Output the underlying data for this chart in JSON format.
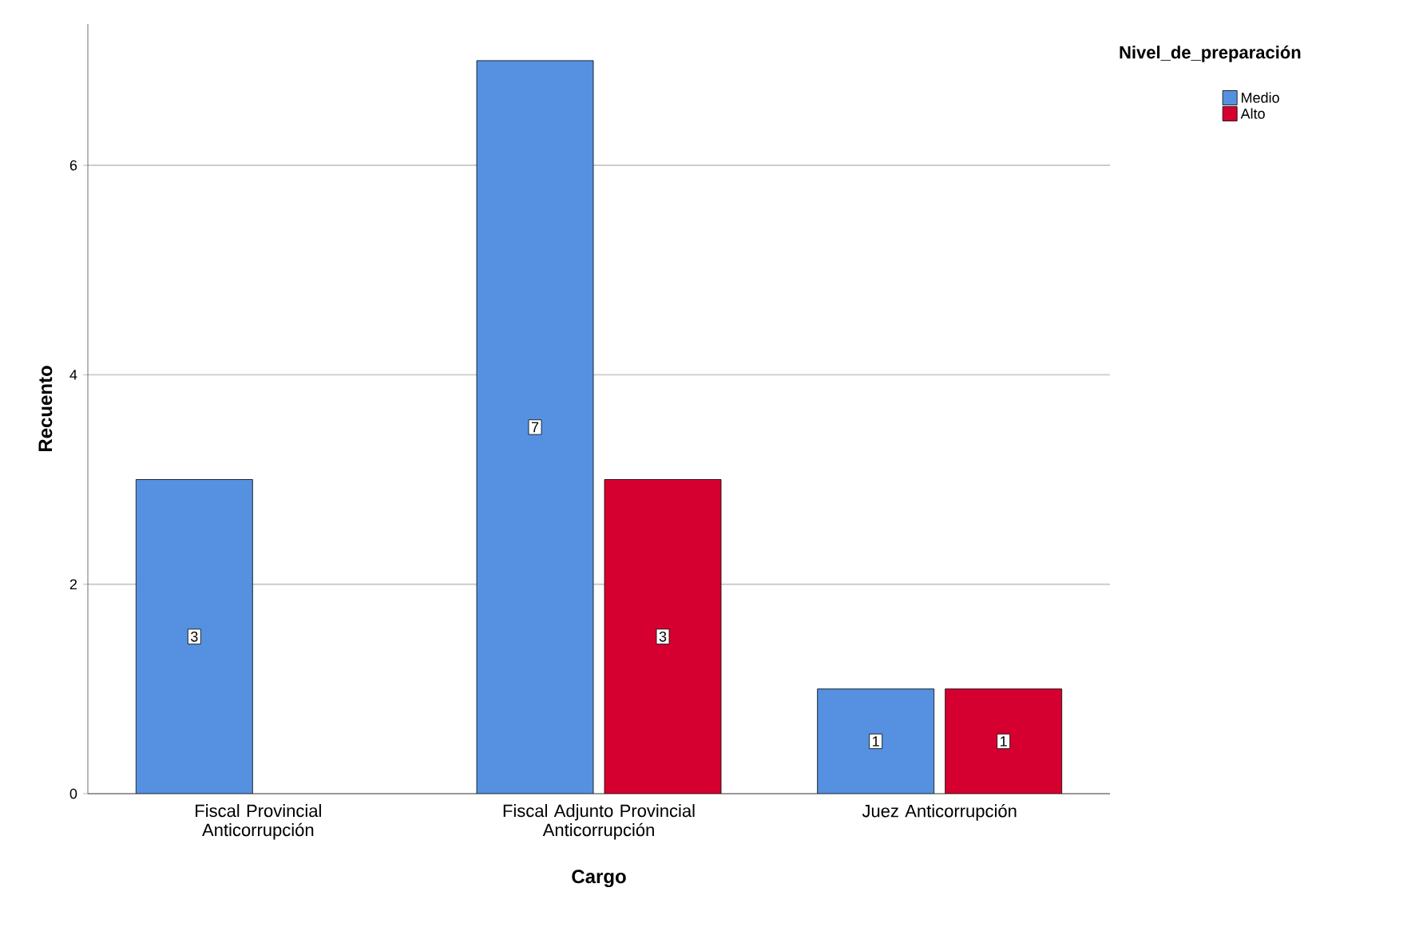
{
  "chart_data": {
    "type": "bar",
    "xlabel": "Cargo",
    "ylabel": "Recuento",
    "legend_title": "Nivel_de_preparación",
    "categories": [
      "Fiscal Provincial Anticorrupción",
      "Fiscal Adjunto Provincial Anticorrupción",
      "Juez Anticorrupción"
    ],
    "series": [
      {
        "name": "Medio",
        "color": "#5591e0",
        "values": [
          3,
          7,
          1
        ]
      },
      {
        "name": "Alto",
        "color": "#d5002f",
        "values": [
          null,
          3,
          1
        ]
      }
    ],
    "ylim": [
      0,
      7.35
    ],
    "yticks": [
      0,
      2,
      4,
      6
    ],
    "grid": "y",
    "legend": "top right",
    "data_labels": true
  }
}
